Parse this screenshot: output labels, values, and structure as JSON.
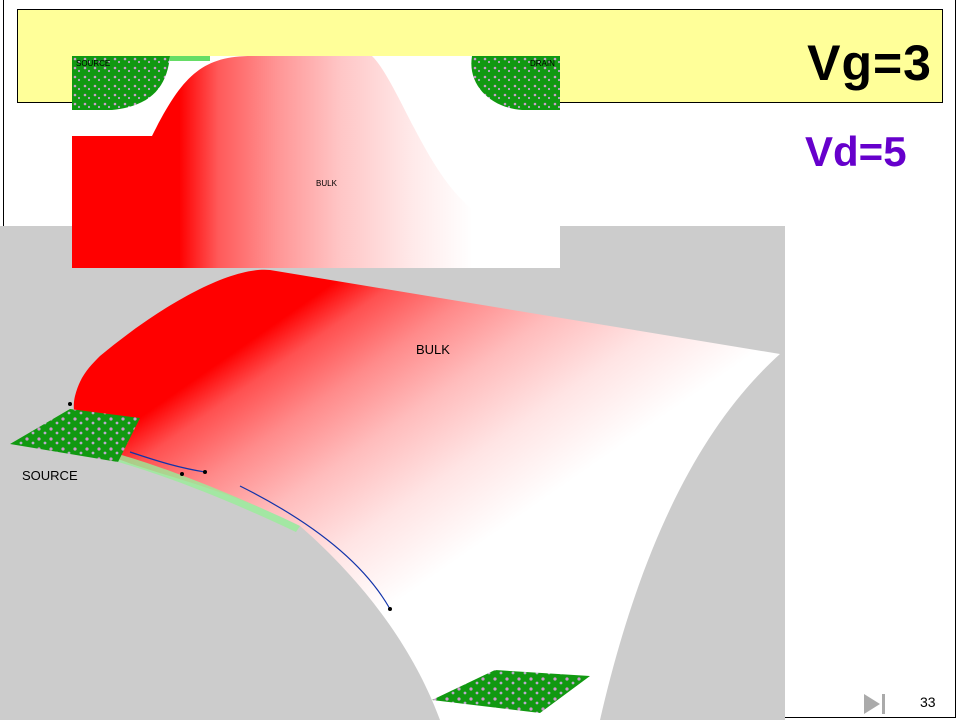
{
  "slide": {
    "title": "Vg=3",
    "subtitle": "Vd=5",
    "page_number": "33"
  },
  "inset_view": {
    "source_label": "SOURCE",
    "drain_label": "DRAIN",
    "bulk_label": "BULK"
  },
  "surface_view": {
    "bulk_label": "BULK",
    "source_label": "SOURCE"
  },
  "colors": {
    "title_band": "#ffff99",
    "subtitle": "#6600cc",
    "potential_high": "#ff0000",
    "potential_low": "#ffffff",
    "doped_region": "#119911",
    "viewport_background": "#cccccc"
  },
  "icons": {
    "next_slide": "play-next-icon"
  }
}
